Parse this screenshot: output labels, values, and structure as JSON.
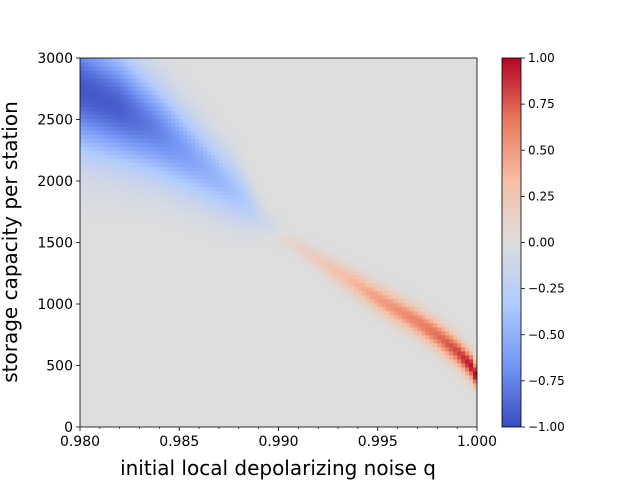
{
  "chart_data": {
    "type": "heatmap",
    "xlabel": "initial local depolarizing noise q",
    "ylabel": "storage capacity per station",
    "xlim": [
      0.98,
      1.0
    ],
    "ylim": [
      0,
      3000
    ],
    "x_ticks": [
      "0.980",
      "0.985",
      "0.990",
      "0.995",
      "1.000"
    ],
    "x_tick_values": [
      0.98,
      0.985,
      0.99,
      0.995,
      1.0
    ],
    "y_ticks": [
      "0",
      "500",
      "1000",
      "1500",
      "2000",
      "2500",
      "3000"
    ],
    "y_tick_values": [
      0,
      500,
      1000,
      1500,
      2000,
      2500,
      3000
    ],
    "background_value": 0.0,
    "colormap": "coolwarm",
    "colormap_stops": [
      "#3b4cc0",
      "#7396f5",
      "#b0cbfc",
      "#dddddd",
      "#f6bfa6",
      "#e9785d",
      "#b40426"
    ],
    "colorbar": {
      "vmin": -1.0,
      "vmax": 1.0,
      "tick_values": [
        1.0,
        0.75,
        0.5,
        0.25,
        0.0,
        -0.25,
        -0.5,
        -0.75,
        -1.0
      ],
      "tick_labels": [
        "1.00",
        "0.75",
        "0.50",
        "0.25",
        "0.00",
        "−0.25",
        "−0.50",
        "−0.75",
        "−1.00"
      ]
    },
    "bands": [
      {
        "name": "negative",
        "ridge": [
          [
            0.98,
            2750
          ],
          [
            0.982,
            2600
          ],
          [
            0.984,
            2400
          ],
          [
            0.986,
            2150
          ],
          [
            0.988,
            1900
          ],
          [
            0.9895,
            1650
          ]
        ],
        "peak": [
          -0.95,
          -0.92,
          -0.75,
          -0.55,
          -0.38,
          -0.08
        ],
        "halfwidth": [
          480,
          430,
          360,
          300,
          230,
          90
        ]
      },
      {
        "name": "positive",
        "ridge": [
          [
            0.9905,
            1520
          ],
          [
            0.993,
            1260
          ],
          [
            0.995,
            1050
          ],
          [
            0.997,
            860
          ],
          [
            0.998,
            750
          ],
          [
            0.999,
            620
          ],
          [
            0.9997,
            500
          ],
          [
            1.0,
            400
          ]
        ],
        "peak": [
          0.08,
          0.3,
          0.5,
          0.62,
          0.7,
          0.82,
          0.96,
          1.0
        ],
        "halfwidth": [
          60,
          90,
          105,
          110,
          110,
          110,
          105,
          90
        ]
      }
    ]
  }
}
